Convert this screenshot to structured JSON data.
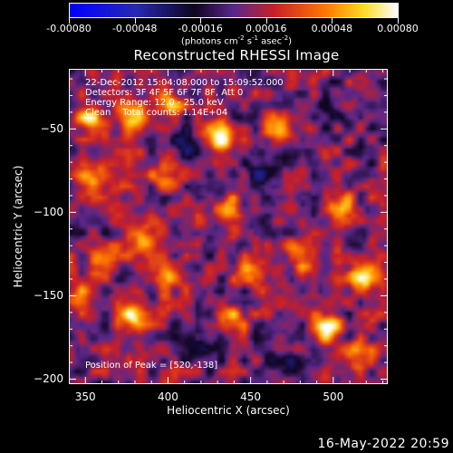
{
  "colorbar": {
    "tick_labels": [
      "-0.00080",
      "-0.00048",
      "-0.00016",
      "0.00016",
      "0.00048",
      "0.00080"
    ],
    "units_text": "(photons cm",
    "units_sup1": "-2",
    "units_mid": " s",
    "units_sup2": "-1",
    "units_mid2": " asec",
    "units_sup3": "-2",
    "units_end": ")"
  },
  "chart_data": {
    "type": "heatmap",
    "title": "Reconstructed RHESSI Image",
    "xlabel": "Heliocentric X (arcsec)",
    "ylabel": "Heliocentric Y (arcsec)",
    "xlim": [
      340,
      533
    ],
    "ylim": [
      -203,
      -14
    ],
    "xticks": [
      350,
      400,
      450,
      500
    ],
    "yticks": [
      -50,
      -100,
      -150,
      -200
    ],
    "color_range": [
      -0.0008,
      0.0008
    ],
    "colormap": "blue-black-purple-red-yellow-white",
    "info_lines": [
      "22-Dec-2012 15:04:08.000 to 15:09:52.000",
      "Detectors: 3F 4F 5F 6F 7F 8F, Att 0",
      "Energy Range: 12.0 - 25.0 keV",
      "Clean    Total counts: 1.14E+04"
    ],
    "peak_text": "Position of Peak = [520,-138]",
    "hotspots": [
      {
        "x": 352,
        "y": -44,
        "v": 0.00055
      },
      {
        "x": 378,
        "y": -42,
        "v": 0.0006
      },
      {
        "x": 400,
        "y": -35,
        "v": 0.00045
      },
      {
        "x": 432,
        "y": -55,
        "v": 0.0008
      },
      {
        "x": 468,
        "y": -50,
        "v": 0.00055
      },
      {
        "x": 352,
        "y": -78,
        "v": 0.0006
      },
      {
        "x": 398,
        "y": -78,
        "v": 0.0004
      },
      {
        "x": 438,
        "y": -98,
        "v": 0.0004
      },
      {
        "x": 505,
        "y": -95,
        "v": 0.0004
      },
      {
        "x": 385,
        "y": -118,
        "v": 0.0006
      },
      {
        "x": 362,
        "y": -130,
        "v": 0.00045
      },
      {
        "x": 400,
        "y": -138,
        "v": 0.0004
      },
      {
        "x": 452,
        "y": -136,
        "v": 0.00045
      },
      {
        "x": 480,
        "y": -126,
        "v": 0.00045
      },
      {
        "x": 520,
        "y": -138,
        "v": 0.0008
      },
      {
        "x": 380,
        "y": -162,
        "v": 0.0007
      },
      {
        "x": 440,
        "y": -165,
        "v": 0.0004
      },
      {
        "x": 497,
        "y": -170,
        "v": 0.0007
      },
      {
        "x": 515,
        "y": -188,
        "v": 0.00045
      },
      {
        "x": 345,
        "y": -150,
        "v": 0.0003
      }
    ],
    "coldspots": [
      {
        "x": 410,
        "y": -60,
        "v": -0.00025
      },
      {
        "x": 455,
        "y": -75,
        "v": -0.0003
      },
      {
        "x": 500,
        "y": -40,
        "v": -0.0002
      },
      {
        "x": 420,
        "y": -180,
        "v": -0.0003
      },
      {
        "x": 470,
        "y": -190,
        "v": -0.00025
      }
    ]
  },
  "footer": {
    "timestamp": "16-May-2022 20:59"
  }
}
